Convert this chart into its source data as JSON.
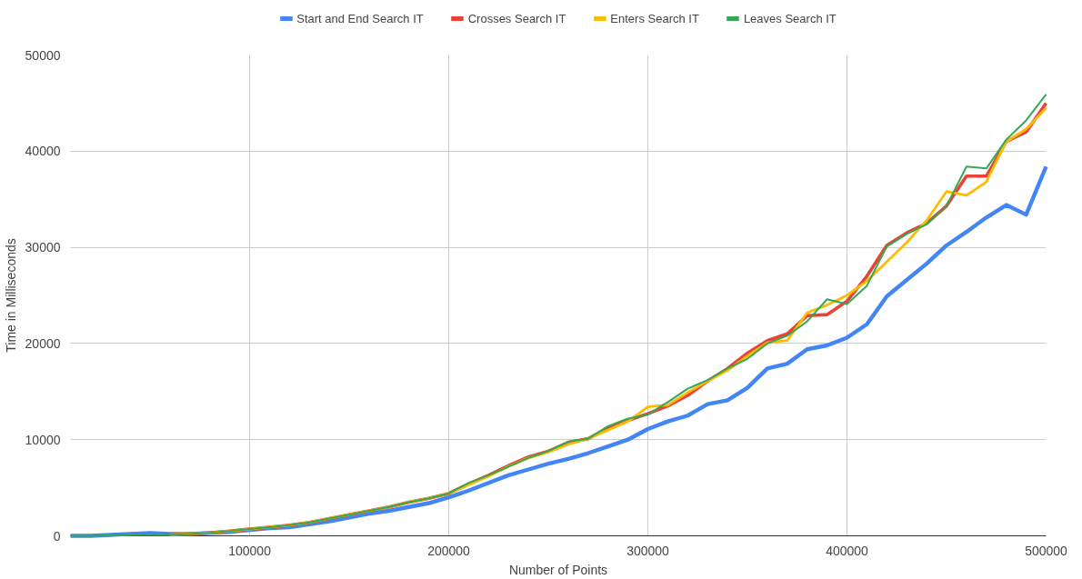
{
  "chart_data": {
    "type": "line",
    "xlabel": "Number of Points",
    "ylabel": "Time in Milliseconds",
    "x": [
      10000,
      20000,
      30000,
      40000,
      50000,
      60000,
      70000,
      80000,
      90000,
      100000,
      110000,
      120000,
      130000,
      140000,
      150000,
      160000,
      170000,
      180000,
      190000,
      200000,
      210000,
      220000,
      230000,
      240000,
      250000,
      260000,
      270000,
      280000,
      290000,
      300000,
      310000,
      320000,
      330000,
      340000,
      350000,
      360000,
      370000,
      380000,
      390000,
      400000,
      410000,
      420000,
      430000,
      440000,
      450000,
      460000,
      470000,
      480000,
      490000,
      500000
    ],
    "series": [
      {
        "name": "Start and End Search IT",
        "color": "#4285f4",
        "values": [
          0,
          0,
          100,
          200,
          300,
          200,
          200,
          300,
          400,
          600,
          800,
          900,
          1200,
          1500,
          1900,
          2300,
          2600,
          3000,
          3400,
          4000,
          4700,
          5500,
          6300,
          6900,
          7500,
          8000,
          8600,
          9300,
          10000,
          11100,
          11900,
          12500,
          13700,
          14100,
          15400,
          17400,
          17900,
          19400,
          19800,
          20600,
          22000,
          24900,
          26600,
          28300,
          30200,
          31600,
          33100,
          34400,
          33400,
          38400
        ]
      },
      {
        "name": "Crosses Search IT",
        "color": "#ea4335",
        "values": [
          null,
          null,
          null,
          null,
          null,
          100,
          200,
          300,
          500,
          700,
          900,
          1100,
          1400,
          1800,
          2200,
          2600,
          3000,
          3500,
          3900,
          4400,
          5400,
          6300,
          7300,
          8200,
          8800,
          9700,
          10100,
          11200,
          12000,
          12700,
          13500,
          14600,
          16100,
          17400,
          19000,
          20300,
          21000,
          22900,
          23000,
          24400,
          27000,
          30200,
          31500,
          32500,
          34300,
          37400,
          37400,
          41000,
          42000,
          45000
        ]
      },
      {
        "name": "Enters Search IT",
        "color": "#fbbc04",
        "values": [
          null,
          null,
          null,
          null,
          null,
          100,
          200,
          300,
          500,
          700,
          900,
          1100,
          1400,
          1800,
          2200,
          2600,
          3000,
          3500,
          3900,
          4400,
          5300,
          6200,
          7200,
          8100,
          8700,
          9500,
          10100,
          11000,
          11900,
          13400,
          13600,
          14900,
          16100,
          17200,
          18700,
          20100,
          20300,
          23200,
          24000,
          25000,
          26500,
          28500,
          30500,
          32800,
          35800,
          35400,
          36800,
          41000,
          42300,
          44500
        ]
      },
      {
        "name": "Leaves Search IT",
        "color": "#34a853",
        "values": [
          0,
          0,
          100,
          100,
          100,
          100,
          200,
          300,
          500,
          700,
          900,
          1100,
          1400,
          1800,
          2200,
          2600,
          3000,
          3500,
          3900,
          4400,
          5500,
          6300,
          7200,
          8100,
          8800,
          9800,
          10100,
          11400,
          12200,
          12600,
          13900,
          15300,
          16200,
          17400,
          18400,
          20000,
          20800,
          22300,
          24600,
          24100,
          26000,
          30100,
          31400,
          32400,
          34300,
          38400,
          38200,
          41200,
          43200,
          45900
        ]
      }
    ],
    "xlim": [
      10000,
      500000
    ],
    "xticks": [
      100000,
      200000,
      300000,
      400000,
      500000
    ],
    "ylim": [
      0,
      50000
    ],
    "yticks": [
      0,
      10000,
      20000,
      30000,
      40000,
      50000
    ],
    "grid": true,
    "legend": "top"
  }
}
